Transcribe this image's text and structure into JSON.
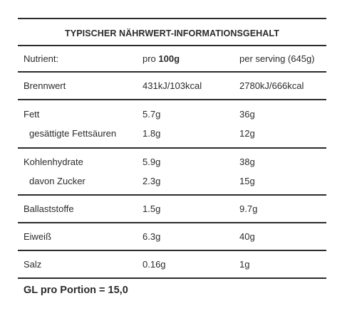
{
  "title": "TYPISCHER NÄHRWERT-INFORMATIONSGEHALT",
  "header": {
    "nutrient": "Nutrient:",
    "per100_prefix": "pro ",
    "per100_bold": "100g",
    "per_serving": "per serving (645g)"
  },
  "sections": [
    [
      {
        "name": "Brennwert",
        "per100": "431kJ/103kcal",
        "serving": "2780kJ/666kcal",
        "sub": false
      }
    ],
    [
      {
        "name": "Fett",
        "per100": "5.7g",
        "serving": "36g",
        "sub": false
      },
      {
        "name": "gesättigte Fettsäuren",
        "per100": "1.8g",
        "serving": "12g",
        "sub": true
      }
    ],
    [
      {
        "name": "Kohlenhydrate",
        "per100": "5.9g",
        "serving": "38g",
        "sub": false
      },
      {
        "name": "davon Zucker",
        "per100": "2.3g",
        "serving": "15g",
        "sub": true
      }
    ],
    [
      {
        "name": "Ballaststoffe",
        "per100": "1.5g",
        "serving": "9.7g",
        "sub": false
      }
    ],
    [
      {
        "name": "Eiweiß",
        "per100": "6.3g",
        "serving": "40g",
        "sub": false
      }
    ],
    [
      {
        "name": "Salz",
        "per100": "0.16g",
        "serving": "1g",
        "sub": false
      }
    ]
  ],
  "footer": "GL pro Portion = 15,0"
}
